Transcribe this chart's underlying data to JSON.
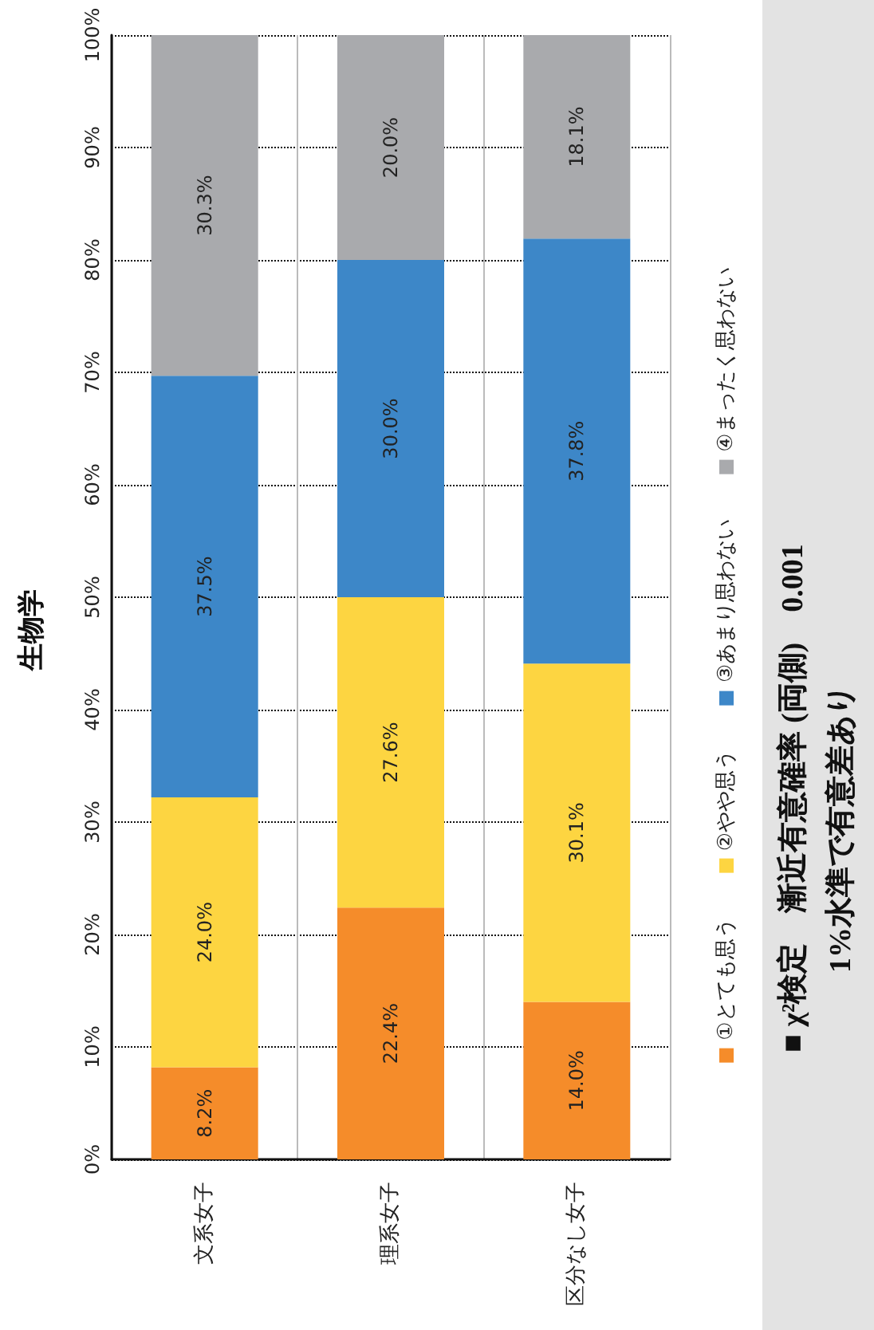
{
  "chart_data": {
    "type": "bar",
    "stacked": true,
    "title": "生物学",
    "categories": [
      "文系女子",
      "理系女子",
      "区分なし女子"
    ],
    "series": [
      {
        "name": "①とても思う",
        "color": "#f58c2a",
        "values": [
          8.2,
          22.4,
          14.0
        ],
        "value_labels": [
          "8.2%",
          "22.4%",
          "14.0%"
        ]
      },
      {
        "name": "②やや思う",
        "color": "#fdd541",
        "values": [
          24.0,
          27.6,
          30.1
        ],
        "value_labels": [
          "24.0%",
          "27.6%",
          "30.1%"
        ]
      },
      {
        "name": "③あまり思わない",
        "color": "#3d87c8",
        "values": [
          37.5,
          30.0,
          37.8
        ],
        "value_labels": [
          "37.5%",
          "30.0%",
          "37.8%"
        ]
      },
      {
        "name": "④まったく思わない",
        "color": "#a9aaad",
        "values": [
          30.3,
          20.0,
          18.1
        ],
        "value_labels": [
          "30.3%",
          "20.0%",
          "18.1%"
        ]
      }
    ],
    "ylim": [
      0,
      100
    ],
    "yticks": [
      {
        "value": 0,
        "label": "0%"
      },
      {
        "value": 10,
        "label": "10%"
      },
      {
        "value": 20,
        "label": "20%"
      },
      {
        "value": 30,
        "label": "30%"
      },
      {
        "value": 40,
        "label": "40%"
      },
      {
        "value": 50,
        "label": "50%"
      },
      {
        "value": 60,
        "label": "60%"
      },
      {
        "value": 70,
        "label": "70%"
      },
      {
        "value": 80,
        "label": "80%"
      },
      {
        "value": 90,
        "label": "90%"
      },
      {
        "value": 100,
        "label": "100%"
      }
    ],
    "grid": true,
    "legend": "right",
    "annotations": [
      "■ χ²検定　漸近有意確率 (両側)　0.001",
      "1%水準で有意差あり"
    ]
  }
}
